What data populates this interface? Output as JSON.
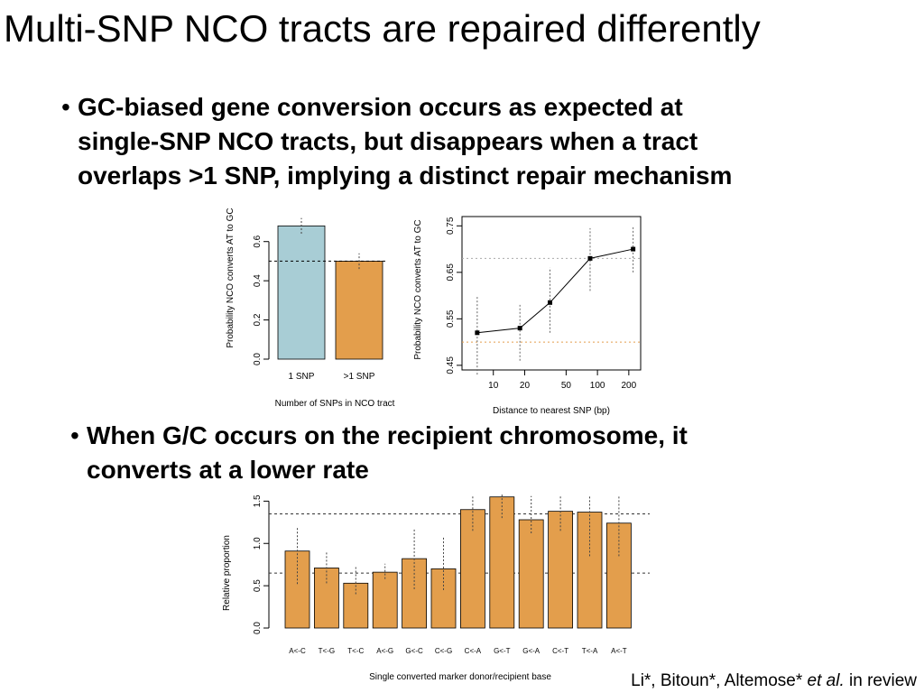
{
  "slide": {
    "title": "Multi-SNP NCO tracts are repaired differently",
    "bullet1": {
      "lines": [
        "GC-biased gene conversion occurs as expected at",
        "single-SNP NCO tracts, but disappears when a tract",
        "overlaps >1 SNP, implying a distinct repair mechanism"
      ]
    },
    "bullet2": {
      "lines": [
        "When G/C occurs on the recipient chromosome, it",
        "converts at a lower rate"
      ]
    },
    "citation": {
      "authors": "Li*, Bitoun*, Altemose*",
      "etal": "et al.",
      "status": "in review"
    }
  },
  "chart_data": [
    {
      "type": "bar",
      "categories": [
        "1 SNP",
        ">1 SNP"
      ],
      "values": [
        0.68,
        0.5
      ],
      "error_low": [
        0.64,
        0.46
      ],
      "error_high": [
        0.72,
        0.54
      ],
      "reference_line": 0.5,
      "colors": [
        "#a8cdd5",
        "#e39e4c"
      ],
      "xlabel": "Number of SNPs in NCO tract",
      "ylabel": "Probability NCO converts AT to GC",
      "ylim": [
        0,
        0.7
      ],
      "yticks": [
        0.0,
        0.2,
        0.4,
        0.6
      ],
      "ytick_labels": [
        "0.0",
        "0.2",
        "0.4",
        "0.6"
      ]
    },
    {
      "type": "line",
      "x": [
        7,
        18,
        35,
        85,
        220
      ],
      "y": [
        0.52,
        0.53,
        0.585,
        0.68,
        0.7
      ],
      "error_low": [
        0.43,
        0.46,
        0.52,
        0.61,
        0.65
      ],
      "error_high": [
        0.6,
        0.58,
        0.66,
        0.745,
        0.75
      ],
      "reference_lines": [
        {
          "value": 0.5,
          "color": "#e39e4c"
        },
        {
          "value": 0.68,
          "color": "#aaaaaa"
        }
      ],
      "xscale": "log",
      "xlim": [
        5,
        260
      ],
      "xticks": [
        10,
        20,
        50,
        100,
        200
      ],
      "xtick_labels": [
        "10",
        "20",
        "50",
        "100",
        "200"
      ],
      "ylim": [
        0.44,
        0.77
      ],
      "yticks": [
        0.45,
        0.55,
        0.65,
        0.75
      ],
      "ytick_labels": [
        "0.45",
        "0.55",
        "0.65",
        "0.75"
      ],
      "xlabel": "Distance to nearest SNP (bp)",
      "ylabel": "Probability NCO converts AT to GC"
    },
    {
      "type": "bar",
      "categories": [
        "A<-C",
        "T<-G",
        "T<-C",
        "A<-G",
        "G<-C",
        "C<-G",
        "C<-A",
        "G<-T",
        "G<-A",
        "C<-T",
        "T<-A",
        "A<-T"
      ],
      "values": [
        0.91,
        0.71,
        0.53,
        0.66,
        0.82,
        0.7,
        1.4,
        1.55,
        1.28,
        1.38,
        1.37,
        1.24
      ],
      "error_low": [
        0.52,
        0.53,
        0.4,
        0.58,
        0.46,
        0.45,
        1.15,
        1.3,
        1.12,
        1.15,
        0.85,
        0.85
      ],
      "error_high": [
        1.2,
        0.91,
        0.73,
        0.76,
        1.17,
        1.08,
        1.56,
        1.58,
        1.56,
        1.57,
        1.57,
        1.57
      ],
      "reference_lines": [
        0.65,
        1.35
      ],
      "color": "#e39e4c",
      "xlabel": "Single converted marker donor/recipient base",
      "ylabel": "Relative proportion",
      "ylim": [
        0,
        1.6
      ],
      "yticks": [
        0.0,
        0.5,
        1.0,
        1.5
      ],
      "ytick_labels": [
        "0.0",
        "0.5",
        "1.0",
        "1.5"
      ]
    }
  ]
}
